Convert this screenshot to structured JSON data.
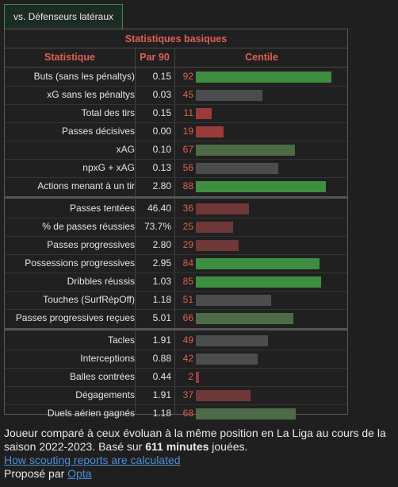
{
  "tab": {
    "label": "vs. Défenseurs latéraux"
  },
  "table": {
    "title": "Statistiques basiques",
    "col_stat": "Statistique",
    "col_per90": "Par 90",
    "col_pct": "Centile",
    "groups": [
      [
        {
          "label": "Buts (sans les pénaltys)",
          "value": "0.15",
          "pct": 92
        },
        {
          "label": "xG sans les pénaltys",
          "value": "0.03",
          "pct": 45
        },
        {
          "label": "Total des tirs",
          "value": "0.15",
          "pct": 11
        },
        {
          "label": "Passes décisives",
          "value": "0.00",
          "pct": 19
        },
        {
          "label": "xAG",
          "value": "0.10",
          "pct": 67
        },
        {
          "label": "npxG + xAG",
          "value": "0.13",
          "pct": 56
        },
        {
          "label": "Actions menant à un tir",
          "value": "2.80",
          "pct": 88
        }
      ],
      [
        {
          "label": "Passes tentées",
          "value": "46.40",
          "pct": 36
        },
        {
          "label": "% de passes réussies",
          "value": "73.7%",
          "pct": 25
        },
        {
          "label": "Passes progressives",
          "value": "2.80",
          "pct": 29
        },
        {
          "label": "Possessions progressives",
          "value": "2.95",
          "pct": 84
        },
        {
          "label": "Dribbles réussis",
          "value": "1.03",
          "pct": 85
        },
        {
          "label": "Touches (SurfRépOff)",
          "value": "1.18",
          "pct": 51
        },
        {
          "label": "Passes progressives reçues",
          "value": "5.01",
          "pct": 66
        }
      ],
      [
        {
          "label": "Tacles",
          "value": "1.91",
          "pct": 49
        },
        {
          "label": "Interceptions",
          "value": "0.88",
          "pct": 42
        },
        {
          "label": "Balles contrées",
          "value": "0.44",
          "pct": 2
        },
        {
          "label": "Dégagements",
          "value": "1.91",
          "pct": 37
        },
        {
          "label": "Duels aérien gagnés",
          "value": "1.18",
          "pct": 68
        }
      ]
    ]
  },
  "colors": {
    "high": "#3e8e41",
    "mid_high": "#4e6b47",
    "mid": "#4a4c4e",
    "low": "#6e3838",
    "very_low": "#9a3a3a"
  },
  "footer": {
    "line1a": "Joueur comparé à ceux évoluan à la même position en La Liga au cours de la saison 2022-2023. Basé sur ",
    "minutes": "611 minutes",
    "line1b": " jouées.",
    "link": "How scouting reports are calculated",
    "by": "Proposé par ",
    "by_link": "Opta"
  }
}
